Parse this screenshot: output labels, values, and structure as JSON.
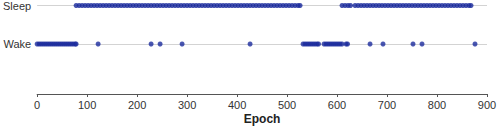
{
  "chart_data": {
    "type": "scatter",
    "x_label": "Epoch",
    "y_categories": [
      "Wake",
      "Sleep"
    ],
    "xlim": [
      0,
      900
    ],
    "xticks": [
      0,
      100,
      200,
      300,
      400,
      500,
      600,
      700,
      800,
      900
    ],
    "grid": true,
    "color": "#1a2a9c",
    "marker": "circle",
    "series": [
      {
        "category": "Sleep",
        "x": [
          78,
          84,
          90,
          96,
          102,
          108,
          114,
          120,
          126,
          132,
          138,
          144,
          150,
          156,
          162,
          168,
          174,
          180,
          186,
          192,
          198,
          204,
          210,
          216,
          222,
          228,
          234,
          240,
          246,
          252,
          258,
          264,
          270,
          276,
          282,
          288,
          294,
          300,
          306,
          312,
          318,
          324,
          330,
          336,
          342,
          348,
          354,
          360,
          366,
          372,
          378,
          384,
          390,
          396,
          402,
          408,
          414,
          420,
          426,
          432,
          438,
          444,
          450,
          456,
          462,
          468,
          474,
          480,
          486,
          492,
          498,
          504,
          510,
          516,
          522,
          526,
          610,
          616,
          622,
          627,
          636,
          642,
          648,
          654,
          660,
          666,
          672,
          678,
          684,
          690,
          696,
          702,
          708,
          714,
          720,
          726,
          732,
          738,
          744,
          750,
          756,
          762,
          768,
          774,
          780,
          786,
          792,
          798,
          804,
          810,
          816,
          822,
          828,
          834,
          840,
          846,
          852,
          858,
          864,
          868
        ]
      },
      {
        "category": "Wake",
        "x": [
          0,
          4,
          8,
          12,
          16,
          20,
          24,
          28,
          32,
          36,
          40,
          44,
          48,
          52,
          56,
          60,
          64,
          68,
          72,
          76,
          78,
          122,
          228,
          246,
          290,
          426,
          532,
          536,
          540,
          544,
          548,
          552,
          556,
          560,
          563,
          574,
          578,
          582,
          586,
          590,
          594,
          598,
          602,
          606,
          610,
          618,
          621,
          666,
          692,
          752,
          770,
          876
        ]
      }
    ]
  }
}
